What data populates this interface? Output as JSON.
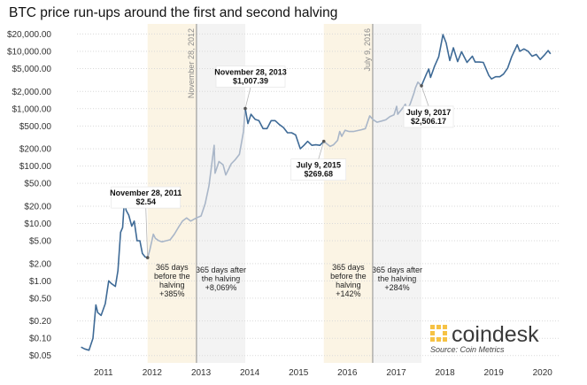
{
  "chart_data": {
    "type": "line",
    "title": "BTC price run-ups around the first and second halving",
    "xlabel": "",
    "ylabel": "",
    "y_scale": "log",
    "ylim": [
      0.04,
      30000
    ],
    "xlim": [
      "2010-07-01",
      "2020-05-01"
    ],
    "grid": "horizontal",
    "y_ticks": [
      {
        "value": 20000,
        "label": "$20,000.00"
      },
      {
        "value": 10000,
        "label": "$10,000.00"
      },
      {
        "value": 5000,
        "label": "$5,000.00"
      },
      {
        "value": 2000,
        "label": "$2,000.00"
      },
      {
        "value": 1000,
        "label": "$1,000.00"
      },
      {
        "value": 500,
        "label": "$500.00"
      },
      {
        "value": 200,
        "label": "$200.00"
      },
      {
        "value": 100,
        "label": "$100.00"
      },
      {
        "value": 50,
        "label": "$50.00"
      },
      {
        "value": 20,
        "label": "$20.00"
      },
      {
        "value": 10,
        "label": "$10.00"
      },
      {
        "value": 5,
        "label": "$5.00"
      },
      {
        "value": 2,
        "label": "$2.00"
      },
      {
        "value": 1,
        "label": "$1.00"
      },
      {
        "value": 0.5,
        "label": "$0.50"
      },
      {
        "value": 0.2,
        "label": "$0.20"
      },
      {
        "value": 0.1,
        "label": "$0.10"
      },
      {
        "value": 0.05,
        "label": "$0.05"
      }
    ],
    "x_ticks": [
      {
        "value": "2011-01-01",
        "label": "2011"
      },
      {
        "value": "2012-01-01",
        "label": "2012"
      },
      {
        "value": "2013-01-01",
        "label": "2013"
      },
      {
        "value": "2014-01-01",
        "label": "2014"
      },
      {
        "value": "2015-01-01",
        "label": "2015"
      },
      {
        "value": "2016-01-01",
        "label": "2016"
      },
      {
        "value": "2017-01-01",
        "label": "2017"
      },
      {
        "value": "2018-01-01",
        "label": "2018"
      },
      {
        "value": "2019-01-01",
        "label": "2019"
      },
      {
        "value": "2020-01-01",
        "label": "2020"
      }
    ],
    "series": [
      {
        "color": "#3e6a96",
        "x": [
          "2010-07-18",
          "2010-08-15",
          "2010-09-15",
          "2010-10-15",
          "2010-11-06",
          "2010-11-20",
          "2010-12-15",
          "2011-01-15",
          "2011-02-10",
          "2011-03-01",
          "2011-04-01",
          "2011-04-20",
          "2011-05-10",
          "2011-05-25",
          "2011-06-08",
          "2011-06-20",
          "2011-07-10",
          "2011-08-01",
          "2011-08-20",
          "2011-09-10",
          "2011-10-01",
          "2011-10-20",
          "2011-11-10",
          "2011-11-28"
        ],
        "y": [
          0.07,
          0.065,
          0.062,
          0.1,
          0.38,
          0.28,
          0.25,
          0.4,
          1.0,
          0.9,
          0.8,
          1.5,
          7.0,
          8.5,
          27,
          17,
          14,
          9,
          11,
          5,
          5,
          3,
          2.6,
          2.54
        ]
      },
      {
        "color": "#a9b6c8",
        "x": [
          "2011-11-28",
          "2011-12-15",
          "2012-01-10",
          "2012-01-25",
          "2012-02-20",
          "2012-03-15",
          "2012-04-15",
          "2012-05-15",
          "2012-06-15",
          "2012-07-15",
          "2012-08-15",
          "2012-09-15",
          "2012-10-15",
          "2012-11-28",
          "2013-01-01",
          "2013-02-01",
          "2013-03-01",
          "2013-04-09",
          "2013-04-16",
          "2013-05-15",
          "2013-06-15",
          "2013-07-05",
          "2013-08-15",
          "2013-09-15",
          "2013-10-15",
          "2013-11-15",
          "2013-11-28"
        ],
        "y": [
          2.54,
          3.5,
          6.5,
          5.5,
          5,
          4.8,
          5,
          5.2,
          6.5,
          8.5,
          11,
          12.5,
          11,
          12.5,
          13.5,
          22,
          45,
          230,
          75,
          120,
          105,
          70,
          110,
          130,
          160,
          400,
          1007.39
        ]
      },
      {
        "color": "#3e6a96",
        "x": [
          "2013-11-28",
          "2013-12-18",
          "2014-01-10",
          "2014-02-10",
          "2014-03-10",
          "2014-04-10",
          "2014-05-10",
          "2014-06-10",
          "2014-07-10",
          "2014-08-10",
          "2014-09-10",
          "2014-10-10",
          "2014-11-10",
          "2014-12-10",
          "2015-01-14",
          "2015-02-10",
          "2015-03-10",
          "2015-04-10",
          "2015-05-10",
          "2015-06-10",
          "2015-07-09"
        ],
        "y": [
          1007.39,
          550,
          800,
          650,
          620,
          450,
          450,
          620,
          620,
          530,
          470,
          380,
          380,
          350,
          200,
          230,
          270,
          230,
          235,
          230,
          269.68
        ]
      },
      {
        "color": "#a9b6c8",
        "x": [
          "2015-07-09",
          "2015-08-25",
          "2015-09-20",
          "2015-10-20",
          "2015-11-05",
          "2015-11-20",
          "2015-12-15",
          "2016-01-15",
          "2016-02-15",
          "2016-03-15",
          "2016-04-15",
          "2016-05-15",
          "2016-06-17",
          "2016-07-09",
          "2016-08-10",
          "2016-09-15",
          "2016-10-15",
          "2016-11-15",
          "2016-12-15",
          "2017-01-04",
          "2017-01-12",
          "2017-02-15",
          "2017-03-10",
          "2017-03-25",
          "2017-04-15",
          "2017-05-15",
          "2017-05-25",
          "2017-06-12",
          "2017-07-09"
        ],
        "y": [
          269.68,
          220,
          235,
          280,
          400,
          330,
          420,
          400,
          400,
          415,
          430,
          450,
          750,
          650,
          580,
          610,
          640,
          730,
          780,
          1100,
          800,
          1000,
          1200,
          950,
          1200,
          1900,
          2300,
          2900,
          2506.17
        ]
      },
      {
        "color": "#3e6a96",
        "x": [
          "2017-07-09",
          "2017-08-15",
          "2017-09-02",
          "2017-09-15",
          "2017-10-15",
          "2017-11-15",
          "2017-12-17",
          "2018-01-10",
          "2018-02-06",
          "2018-03-05",
          "2018-04-06",
          "2018-05-05",
          "2018-06-15",
          "2018-07-25",
          "2018-08-15",
          "2018-09-15",
          "2018-10-15",
          "2018-11-25",
          "2018-12-15",
          "2019-01-15",
          "2019-02-15",
          "2019-03-15",
          "2019-04-15",
          "2019-05-15",
          "2019-06-26",
          "2019-07-15",
          "2019-08-15",
          "2019-09-15",
          "2019-10-15",
          "2019-11-15",
          "2019-12-15",
          "2020-01-15",
          "2020-02-12",
          "2020-03-01"
        ],
        "y": [
          2506.17,
          4000,
          4900,
          3500,
          5500,
          8000,
          19500,
          14000,
          6900,
          11500,
          6600,
          9800,
          6400,
          8200,
          6500,
          6500,
          6400,
          3800,
          3300,
          3600,
          3600,
          4000,
          5100,
          8000,
          13000,
          10000,
          11000,
          10000,
          8200,
          8800,
          7200,
          8600,
          10300,
          9000
        ]
      }
    ],
    "halving_markers": [
      {
        "x": "2012-11-28",
        "label": "November 28, 2012"
      },
      {
        "x": "2016-07-09",
        "label": "July 9, 2016"
      }
    ],
    "shaded_periods": [
      {
        "x_start": "2011-11-28",
        "x_end": "2012-11-28",
        "color": "#fbf4e4",
        "label": [
          "365 days",
          "before the",
          "halving",
          "+385%"
        ]
      },
      {
        "x_start": "2012-11-28",
        "x_end": "2013-11-28",
        "color": "#f3f3f3",
        "label": [
          "365 days after",
          "the halving",
          "+8,069%"
        ]
      },
      {
        "x_start": "2015-07-09",
        "x_end": "2016-07-09",
        "color": "#fbf4e4",
        "label": [
          "365 days",
          "before the",
          "halving",
          "+142%"
        ]
      },
      {
        "x_start": "2016-07-09",
        "x_end": "2017-07-09",
        "color": "#f3f3f3",
        "label": [
          "365 days after",
          "the halving",
          "+284%"
        ]
      }
    ],
    "callouts": [
      {
        "x": "2011-11-28",
        "y": 2.54,
        "date": "November 28, 2011",
        "price": "$2.54"
      },
      {
        "x": "2013-11-28",
        "y": 1007.39,
        "date": "November 28, 2013",
        "price": "$1,007.39"
      },
      {
        "x": "2015-07-09",
        "y": 269.68,
        "date": "July 9, 2015",
        "price": "$269.68"
      },
      {
        "x": "2017-07-09",
        "y": 2506.17,
        "date": "July 9, 2017",
        "price": "$2,506.17"
      }
    ]
  },
  "brand": {
    "name": "coindesk",
    "source": "Source: Coin Metrics",
    "logo_color": "#f6c244",
    "logo_icon": "coindesk-logo-icon"
  }
}
